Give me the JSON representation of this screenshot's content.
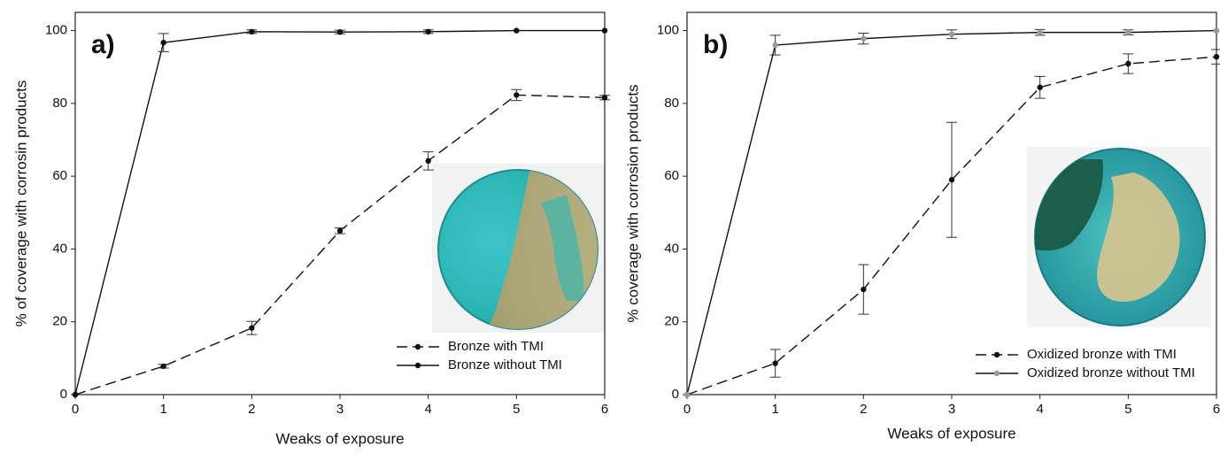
{
  "chart_data": [
    {
      "type": "line",
      "panel_label": "a)",
      "x_label": "Weaks of exposure",
      "y_label": "% of coverage with corrosin products",
      "x": [
        0,
        1,
        2,
        3,
        4,
        5,
        6
      ],
      "xlim": [
        0,
        6
      ],
      "ylim": [
        0,
        105
      ],
      "xticks": [
        0,
        1,
        2,
        3,
        4,
        5,
        6
      ],
      "yticks": [
        0,
        20,
        40,
        60,
        80,
        100
      ],
      "legend_position": "lower right",
      "series": [
        {
          "name": "Bronze with TMI",
          "color": "#111111",
          "marker_color": "#111111",
          "linestyle": "dashed",
          "values": [
            0,
            7.8,
            18.3,
            45,
            64.2,
            82.3,
            81.6
          ],
          "errors": [
            0,
            0.5,
            1.8,
            0.8,
            2.5,
            1.5,
            0.6
          ]
        },
        {
          "name": "Bronze without TMI",
          "color": "#111111",
          "marker_color": "#111111",
          "linestyle": "solid",
          "values": [
            0,
            96.7,
            99.7,
            99.6,
            99.7,
            100,
            100
          ],
          "errors": [
            0,
            2.5,
            0.5,
            0.5,
            0.5,
            0,
            0
          ]
        }
      ]
    },
    {
      "type": "line",
      "panel_label": "b)",
      "x_label": "Weaks of exposure",
      "y_label": "% coverage with corrosion products",
      "x": [
        0,
        1,
        2,
        3,
        4,
        5,
        6
      ],
      "xlim": [
        0,
        6
      ],
      "ylim": [
        0,
        105
      ],
      "xticks": [
        0,
        1,
        2,
        3,
        4,
        5,
        6
      ],
      "yticks": [
        0,
        20,
        40,
        60,
        80,
        100
      ],
      "legend_position": "lower right",
      "series": [
        {
          "name": "Oxidized bronze with TMI",
          "color": "#111111",
          "marker_color": "#111111",
          "linestyle": "dashed",
          "values": [
            0,
            8.6,
            28.9,
            59,
            84.4,
            90.9,
            92.8
          ],
          "errors": [
            0,
            3.8,
            6.8,
            15.8,
            3,
            2.7,
            2
          ]
        },
        {
          "name": "Oxidized bronze without TMI",
          "color": "#111111",
          "marker_color": "#999999",
          "linestyle": "solid",
          "values": [
            0,
            96,
            97.8,
            99,
            99.5,
            99.5,
            100
          ],
          "errors": [
            0,
            2.7,
            1.5,
            1.2,
            0.8,
            0.7,
            0
          ]
        }
      ]
    }
  ]
}
